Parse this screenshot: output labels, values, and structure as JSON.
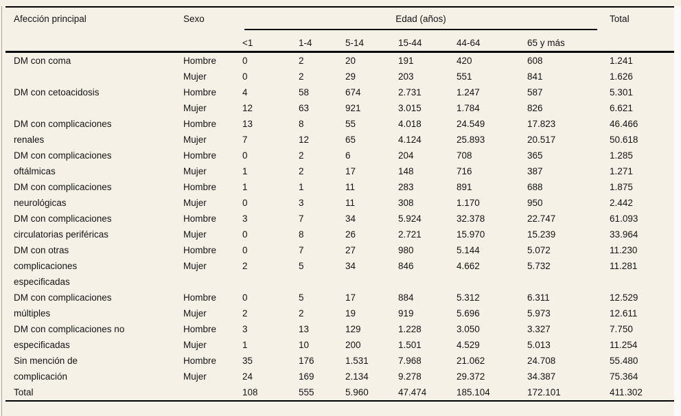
{
  "page": {
    "background": "#f5f1e6",
    "rule_color": "#000000",
    "text_color": "#131313"
  },
  "table": {
    "header": {
      "affliction": "Afección principal",
      "sex": "Sexo",
      "age_group": "Edad (años)",
      "total": "Total",
      "age_columns": [
        "<1",
        "1-4",
        "5-14",
        "15-44",
        "44-64",
        "65 y más"
      ]
    },
    "groups": [
      {
        "label_lines": [
          "DM con coma"
        ],
        "spacer": false,
        "rows": [
          {
            "sex": "Hombre",
            "values": [
              "0",
              "2",
              "20",
              "191",
              "420",
              "608",
              "1.241"
            ]
          },
          {
            "sex": "Mujer",
            "values": [
              "0",
              "2",
              "29",
              "203",
              "551",
              "841",
              "1.626"
            ]
          }
        ]
      },
      {
        "label_lines": [
          "DM con cetoacidosis"
        ],
        "spacer": false,
        "rows": [
          {
            "sex": "Hombre",
            "values": [
              "4",
              "58",
              "674",
              "2.731",
              "1.247",
              "587",
              "5.301"
            ]
          },
          {
            "sex": "Mujer",
            "values": [
              "12",
              "63",
              "921",
              "3.015",
              "1.784",
              "826",
              "6.621"
            ]
          }
        ]
      },
      {
        "label_lines": [
          "DM con complicaciones",
          "renales"
        ],
        "spacer": false,
        "rows": [
          {
            "sex": "Hombre",
            "values": [
              "13",
              "8",
              "55",
              "4.018",
              "24.549",
              "17.823",
              "46.466"
            ]
          },
          {
            "sex": "Mujer",
            "values": [
              "7",
              "12",
              "65",
              "4.124",
              "25.893",
              "20.517",
              "50.618"
            ]
          }
        ]
      },
      {
        "label_lines": [
          "DM con complicaciones",
          "oftálmicas"
        ],
        "spacer": false,
        "rows": [
          {
            "sex": "Hombre",
            "values": [
              "0",
              "2",
              "6",
              "204",
              "708",
              "365",
              "1.285"
            ]
          },
          {
            "sex": "Mujer",
            "values": [
              "1",
              "2",
              "17",
              "148",
              "716",
              "387",
              "1.271"
            ]
          }
        ]
      },
      {
        "label_lines": [
          "DM con complicaciones",
          "neurológicas"
        ],
        "spacer": false,
        "rows": [
          {
            "sex": "Hombre",
            "values": [
              "1",
              "1",
              "11",
              "283",
              "891",
              "688",
              "1.875"
            ]
          },
          {
            "sex": "Mujer",
            "values": [
              "0",
              "3",
              "11",
              "308",
              "1.170",
              "950",
              "2.442"
            ]
          }
        ]
      },
      {
        "label_lines": [
          "DM con complicaciones",
          "circulatorias periféricas"
        ],
        "spacer": false,
        "rows": [
          {
            "sex": "Hombre",
            "values": [
              "3",
              "7",
              "34",
              "5.924",
              "32.378",
              "22.747",
              "61.093"
            ]
          },
          {
            "sex": "Mujer",
            "values": [
              "0",
              "8",
              "26",
              "2.721",
              "15.970",
              "15.239",
              "33.964"
            ]
          }
        ]
      },
      {
        "label_lines": [
          "DM con otras",
          "complicaciones",
          "especificadas"
        ],
        "spacer": true,
        "rows": [
          {
            "sex": "Hombre",
            "values": [
              "0",
              "7",
              "27",
              "980",
              "5.144",
              "5.072",
              "11.230"
            ]
          },
          {
            "sex": "Mujer",
            "values": [
              "2",
              "5",
              "34",
              "846",
              "4.662",
              "5.732",
              "11.281"
            ]
          }
        ]
      },
      {
        "label_lines": [
          "DM con complicaciones",
          "múltiples"
        ],
        "spacer": false,
        "rows": [
          {
            "sex": "Hombre",
            "values": [
              "0",
              "5",
              "17",
              "884",
              "5.312",
              "6.311",
              "12.529"
            ]
          },
          {
            "sex": "Mujer",
            "values": [
              "2",
              "2",
              "19",
              "919",
              "5.696",
              "5.973",
              "12.611"
            ]
          }
        ]
      },
      {
        "label_lines": [
          "DM con complicaciones no",
          "especificadas"
        ],
        "spacer": false,
        "rows": [
          {
            "sex": "Hombre",
            "values": [
              "3",
              "13",
              "129",
              "1.228",
              "3.050",
              "3.327",
              "7.750"
            ]
          },
          {
            "sex": "Mujer",
            "values": [
              "1",
              "10",
              "200",
              "1.501",
              "4.529",
              "5.013",
              "11.254"
            ]
          }
        ]
      },
      {
        "label_lines": [
          "Sin mención de",
          "complicación"
        ],
        "spacer": false,
        "rows": [
          {
            "sex": "Hombre",
            "values": [
              "35",
              "176",
              "1.531",
              "7.968",
              "21.062",
              "24.708",
              "55.480"
            ]
          },
          {
            "sex": "Mujer",
            "values": [
              "24",
              "169",
              "2.134",
              "9.278",
              "29.372",
              "34.387",
              "75.364"
            ]
          }
        ]
      }
    ],
    "total_row": {
      "label": "Total",
      "values": [
        "108",
        "555",
        "5.960",
        "47.474",
        "185.104",
        "172.101",
        "411.302"
      ]
    }
  }
}
